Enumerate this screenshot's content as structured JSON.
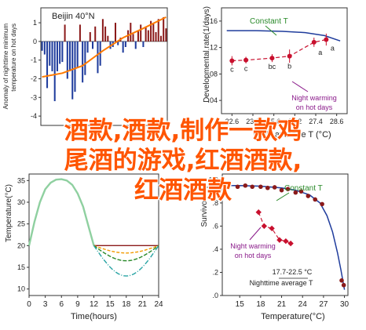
{
  "colors": {
    "accent_orange": "#ff7a00",
    "blue": "#1f3c9c",
    "red": "#c8102e",
    "dark_red": "#8b1a1a",
    "green": "#2a8a2a",
    "teal": "#27a3a3",
    "purple": "#8a1a8a",
    "overlay_text": "#ff5500"
  },
  "overlay_text": [
    "酒款,酒款,制作一款鸡",
    "尾酒的游戏,红酒酒款,",
    "红酒酒款"
  ],
  "chart_data": [
    {
      "panel": "top-left",
      "type": "bar",
      "ylabel": "Anomaly of nighttime minimum temperature on hot days",
      "yticks": [
        "1",
        "0",
        "-1",
        "-2",
        "-3",
        "-4"
      ],
      "ylim": [
        -4.5,
        1.8
      ],
      "annotation": "Beijin 40°N",
      "bars": [
        -0.5,
        -0.7,
        -2.5,
        -1.3,
        -1.6,
        -3.2,
        -1.6,
        -1.2,
        -1.1,
        0.9,
        -2.0,
        -1.6,
        -3.1,
        -2.7,
        -1.4,
        0.9,
        -2.2,
        -1.8,
        -0.6,
        0.5,
        -0.4,
        0.8,
        -1.7,
        -1.3,
        1.2,
        0.8,
        0.3,
        -0.4,
        -0.3,
        1.0,
        -0.2,
        0.2,
        -0.6,
        -0.3,
        0.6,
        1.0,
        0.4,
        -0.4,
        0.6,
        0.9,
        -0.3,
        0.8,
        0.6,
        1.1,
        1.0,
        0.5,
        1.2,
        0.3,
        1.3,
        0.7
      ],
      "trend": [
        [
          0,
          -1.9
        ],
        [
          8,
          -1.7
        ],
        [
          16,
          -1.3
        ],
        [
          24,
          -0.5
        ],
        [
          32,
          0.2
        ],
        [
          40,
          0.7
        ],
        [
          49,
          1.3
        ]
      ]
    },
    {
      "panel": "top-right",
      "type": "line",
      "ylabel": "Developmental rate(1/days)",
      "xlabel": "Daily average T (°C)",
      "xticks": [
        "22.6",
        "23.8",
        "25.0",
        "26.2",
        "27.4",
        "28.6"
      ],
      "yticks": [
        ".16",
        ".12",
        ".08",
        ".04"
      ],
      "xlim": [
        22.0,
        29.2
      ],
      "ylim": [
        0.02,
        0.18
      ],
      "legend_constant": "Constant T",
      "legend_night": [
        "Night warming",
        "on hot days"
      ],
      "constant_curve": [
        [
          22.3,
          0.1455
        ],
        [
          24.0,
          0.1455
        ],
        [
          25.5,
          0.1445
        ],
        [
          26.8,
          0.1425
        ],
        [
          27.9,
          0.138
        ],
        [
          28.8,
          0.13
        ]
      ],
      "night_series": [
        {
          "x": 22.6,
          "y": 0.1,
          "err": 0.007,
          "label": "c"
        },
        {
          "x": 23.4,
          "y": 0.101,
          "err": 0.005,
          "label": "c"
        },
        {
          "x": 24.9,
          "y": 0.104,
          "err": 0.006,
          "label": "bc"
        },
        {
          "x": 25.9,
          "y": 0.107,
          "err": 0.01,
          "label": "b"
        },
        {
          "x": 27.3,
          "y": 0.128,
          "err": 0.007,
          "label": "a"
        },
        {
          "x": 28.0,
          "y": 0.132,
          "err": 0.009,
          "label": "a"
        }
      ]
    },
    {
      "panel": "bottom-left",
      "type": "line",
      "ylabel": "Temperature(°C)",
      "xlabel": "Time(hours)",
      "xticks": [
        "0",
        "3",
        "6",
        "9",
        "12",
        "15",
        "18",
        "21",
        "24"
      ],
      "yticks": [
        "35",
        "30",
        "25",
        "20",
        "15",
        "10"
      ],
      "xlim": [
        0,
        24
      ],
      "ylim": [
        8.5,
        36.5
      ],
      "day_curve": [
        [
          0,
          20.0
        ],
        [
          1,
          25.5
        ],
        [
          2,
          30.0
        ],
        [
          3,
          33.0
        ],
        [
          4,
          34.5
        ],
        [
          5,
          35.2
        ],
        [
          6,
          35.3
        ],
        [
          7,
          35.0
        ],
        [
          8,
          34.0
        ],
        [
          9,
          32.0
        ],
        [
          10,
          29.0
        ],
        [
          11,
          24.5
        ],
        [
          12,
          20.0
        ]
      ],
      "night_series": [
        {
          "name": "dark-red",
          "color": "#8b1a1a",
          "dash": "none",
          "min": 20.0
        },
        {
          "name": "orange",
          "color": "#f29a00",
          "dash": "4,2",
          "min": 18.3
        },
        {
          "name": "green",
          "color": "#2a8a2a",
          "dash": "5,2",
          "min": 16.5
        },
        {
          "name": "teal",
          "color": "#27a3a3",
          "dash": "6,2,1,2",
          "min": 13.0
        }
      ],
      "night_start": 12,
      "night_end": 24,
      "night_edge": 20.0
    },
    {
      "panel": "bottom-right",
      "type": "line",
      "ylabel": "Survivorship",
      "xlabel": "Temperature(°C)",
      "xticks": [
        "15",
        "18",
        "21",
        "24",
        "27",
        "30"
      ],
      "yticks": [
        "1.0",
        ".8",
        ".6",
        ".4",
        ".2",
        ".0"
      ],
      "xlim": [
        12.5,
        30.5
      ],
      "ylim": [
        0,
        1.05
      ],
      "legend_constant": "Constant T",
      "legend_night": [
        "Night warming",
        "on hot days"
      ],
      "annotation_range": "17.7-22.5 °C",
      "annotation_axis": "Nighttime average T",
      "constant_curve": [
        [
          13.5,
          0.95
        ],
        [
          15,
          0.95
        ],
        [
          18,
          0.945
        ],
        [
          21,
          0.93
        ],
        [
          23,
          0.91
        ],
        [
          25,
          0.87
        ],
        [
          26.5,
          0.8
        ],
        [
          27.5,
          0.69
        ],
        [
          28.3,
          0.55
        ],
        [
          29.0,
          0.37
        ],
        [
          29.5,
          0.22
        ],
        [
          30.0,
          0.05
        ]
      ],
      "constant_points": [
        [
          14.7,
          0.94
        ],
        [
          15.8,
          0.95
        ],
        [
          16.8,
          0.94
        ],
        [
          18.0,
          0.94
        ],
        [
          19.0,
          0.93
        ],
        [
          20.0,
          0.935
        ],
        [
          21.0,
          0.91
        ],
        [
          21.9,
          0.92
        ],
        [
          23.0,
          0.89
        ],
        [
          23.8,
          0.9
        ],
        [
          24.8,
          0.86
        ],
        [
          25.8,
          0.83
        ],
        [
          26.8,
          0.79
        ],
        [
          29.6,
          0.13
        ],
        [
          29.9,
          0.09
        ]
      ],
      "night_points": [
        [
          17.7,
          0.72
        ],
        [
          18.5,
          0.6
        ],
        [
          19.6,
          0.58
        ],
        [
          20.7,
          0.48
        ],
        [
          21.6,
          0.47
        ],
        [
          22.3,
          0.45
        ]
      ]
    }
  ]
}
